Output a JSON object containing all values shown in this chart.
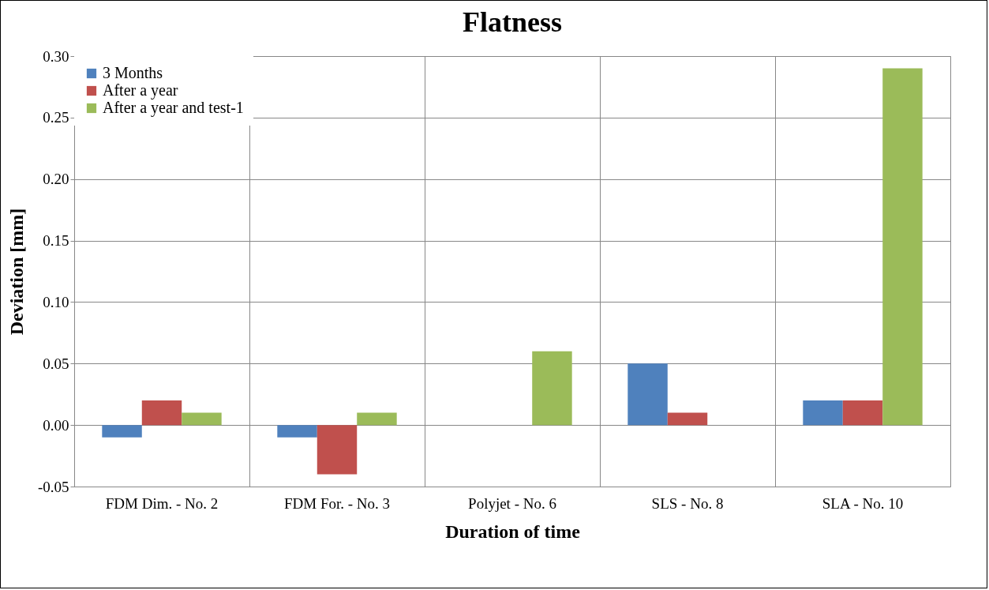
{
  "chart_data": {
    "type": "bar",
    "title": "Flatness",
    "xlabel": "Duration of time",
    "ylabel": "Deviation [mm]",
    "categories": [
      "FDM Dim. - No. 2",
      "FDM For. - No. 3",
      "Polyjet - No. 6",
      "SLS - No. 8",
      "SLA - No. 10"
    ],
    "series": [
      {
        "name": "3 Months",
        "color": "#4f81bd",
        "values": [
          -0.01,
          -0.01,
          0,
          0.05,
          0.02
        ]
      },
      {
        "name": "After a year",
        "color": "#c0504d",
        "values": [
          0.02,
          -0.04,
          0,
          0.01,
          0.02
        ]
      },
      {
        "name": "After a year and test-1",
        "color": "#9bbb59",
        "values": [
          0.01,
          0.01,
          0.06,
          0,
          0.29
        ]
      }
    ],
    "ylim": [
      -0.05,
      0.3
    ],
    "yticks": [
      {
        "value": -0.05,
        "label": "-0.05"
      },
      {
        "value": 0,
        "label": "0.00"
      },
      {
        "value": 0.05,
        "label": "0.05"
      },
      {
        "value": 0.1,
        "label": "0.10"
      },
      {
        "value": 0.15,
        "label": "0.15"
      },
      {
        "value": 0.2,
        "label": "0.20"
      },
      {
        "value": 0.25,
        "label": "0.25"
      },
      {
        "value": 0.3,
        "label": "0.30"
      }
    ],
    "grid": true,
    "legend": "top left"
  }
}
